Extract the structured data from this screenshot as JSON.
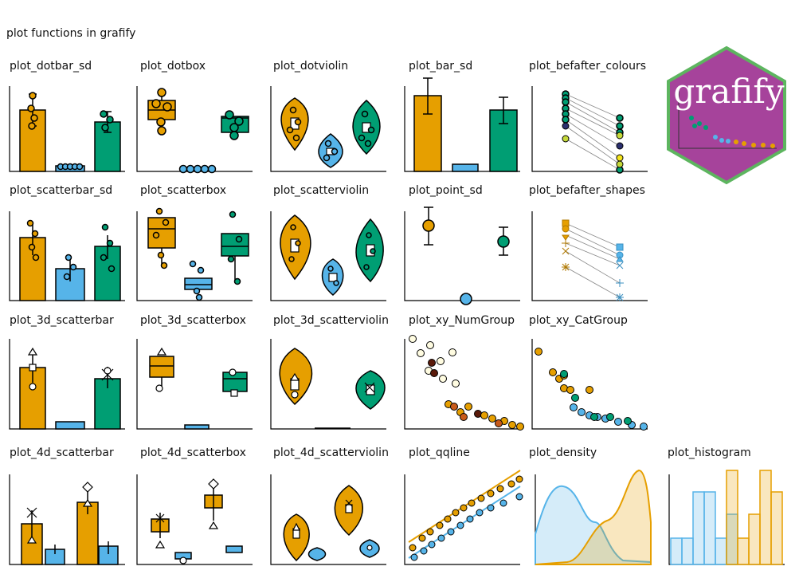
{
  "title": "plot functions in grafify",
  "logo": "grafify",
  "panels": [
    "plot_dotbar_sd",
    "plot_dotbox",
    "plot_dotviolin",
    "plot_bar_sd",
    "plot_befafter_colours",
    "plot_scatterbar_sd",
    "plot_scatterbox",
    "plot_scatterviolin",
    "plot_point_sd",
    "plot_befafter_shapes",
    "plot_3d_scatterbar",
    "plot_3d_scatterbox",
    "plot_3d_scatterviolin",
    "plot_xy_NumGroup",
    "plot_xy_CatGroup",
    "plot_4d_scatterbar",
    "plot_4d_scatterbox",
    "plot_4d_scatterviolin",
    "plot_qqline",
    "plot_density",
    "plot_histogram"
  ]
}
